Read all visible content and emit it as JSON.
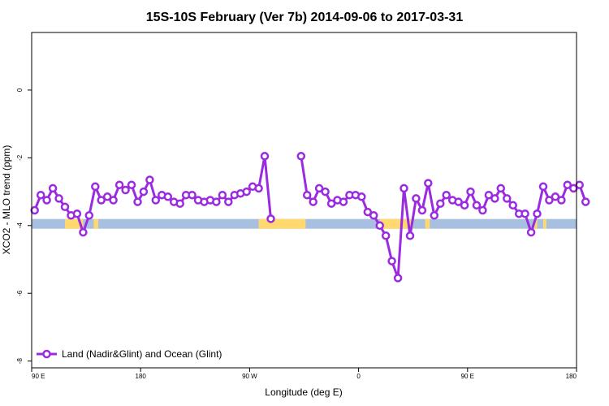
{
  "chart_data": {
    "type": "line",
    "title": "15S-10S February (Ver 7b)   2014-09-06 to 2017-03-31",
    "xlabel": "Longitude (deg E)",
    "ylabel": "XCO2 - MLO trend (ppm)",
    "xlim": [
      90,
      450
    ],
    "ylim": [
      -8.2,
      1.7
    ],
    "x_ticks": [
      {
        "value": 90,
        "label": "90 E"
      },
      {
        "value": 162,
        "label": "180"
      },
      {
        "value": 234,
        "label": "90 W"
      },
      {
        "value": 306,
        "label": "0"
      },
      {
        "value": 378,
        "label": "90 E"
      },
      {
        "value": 450,
        "label": "180"
      }
    ],
    "y_ticks": [
      {
        "value": 0,
        "label": "0"
      },
      {
        "value": -2,
        "label": "-2"
      },
      {
        "value": -4,
        "label": "-4"
      },
      {
        "value": -6,
        "label": "-6"
      },
      {
        "value": -8,
        "label": "-8"
      }
    ],
    "legend": {
      "position": "bottom-left",
      "entries": [
        "Land (Nadir&Glint) and Ocean (Glint)"
      ]
    },
    "grid": false,
    "series": [
      {
        "name": "Land (Nadir&Glint) and Ocean (Glint)",
        "color": "#9a2be0",
        "segments": [
          {
            "x": [
              92,
              96,
              100,
              104,
              108,
              112,
              116,
              120,
              124,
              128,
              132,
              136,
              140,
              144,
              148,
              152,
              156,
              160,
              164,
              168,
              172,
              176,
              180,
              184,
              188,
              192,
              196,
              200,
              204,
              208,
              212,
              216,
              220,
              224,
              228,
              232,
              236,
              240,
              244,
              248,
              252
            ],
            "y": [
              -3.55,
              -3.1,
              -3.25,
              -2.9,
              -3.2,
              -3.45,
              -3.7,
              -3.65,
              -4.2,
              -3.7,
              -2.85,
              -3.25,
              -3.15,
              -3.25,
              -2.8,
              -2.95,
              -2.8,
              -3.3,
              -3.0,
              -2.65,
              -3.25,
              -3.1,
              -3.15,
              -3.3,
              -3.35,
              -3.1,
              -3.1,
              -3.25,
              -3.3,
              -3.25,
              -3.3,
              -3.1,
              -3.3,
              -3.1,
              -3.05,
              -3.0,
              -2.85,
              -2.9,
              -1.95,
              -3.8,
              null
            ]
          },
          {
            "x": [
              268,
              272,
              276,
              280,
              284,
              288,
              292,
              296,
              300,
              304,
              308,
              312,
              316,
              320,
              324,
              328,
              332,
              336,
              340,
              344,
              348,
              352,
              356,
              360,
              364,
              368,
              372,
              376,
              380,
              384,
              388,
              392,
              396,
              400,
              404,
              408,
              412,
              416,
              420,
              424,
              428,
              432,
              436,
              440,
              444,
              448
            ],
            "y": [
              -1.95,
              -3.1,
              -3.3,
              -2.9,
              -3.0,
              -3.35,
              -3.25,
              -3.3,
              -3.1,
              -3.1,
              -3.15,
              -3.6,
              -3.7,
              -4.0,
              -4.3,
              -5.05,
              -5.55,
              -2.9,
              -4.3,
              -3.2,
              -3.55,
              -2.75,
              -3.7,
              -3.35,
              -3.1,
              -3.25,
              -3.3,
              -3.4,
              -3.0,
              -3.4,
              -3.55,
              -3.1,
              -3.2,
              -2.9,
              -3.2,
              -3.4,
              -3.65,
              -3.65,
              -4.2,
              -3.65,
              -2.85,
              -3.25,
              -3.15,
              -3.25,
              -2.8,
              -2.9
            ]
          }
        ],
        "extra": {
          "x": [
            452,
            456
          ],
          "y": [
            -2.8,
            -3.3
          ]
        }
      }
    ],
    "surface_bar": {
      "y": -3.95,
      "land_color": "#ffd870",
      "ocean_color": "#a8c0e0",
      "land_ranges": [
        [
          112,
          124
        ],
        [
          131,
          134
        ],
        [
          240,
          271
        ],
        [
          320,
          342
        ],
        [
          350,
          353
        ],
        [
          422,
          424
        ],
        [
          428,
          430
        ]
      ]
    }
  }
}
